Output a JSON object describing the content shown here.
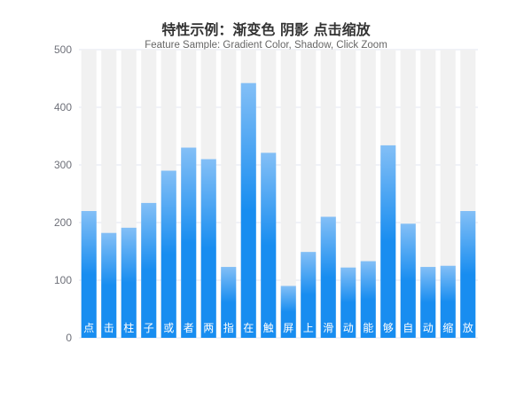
{
  "chart_data": {
    "type": "bar",
    "title": "特性示例：渐变色 阴影 点击缩放",
    "subtitle": "Feature Sample: Gradient Color, Shadow, Click Zoom",
    "categories": [
      "点",
      "击",
      "柱",
      "子",
      "或",
      "者",
      "两",
      "指",
      "在",
      "触",
      "屏",
      "上",
      "滑",
      "动",
      "能",
      "够",
      "自",
      "动",
      "缩",
      "放"
    ],
    "values": [
      220,
      182,
      191,
      234,
      290,
      330,
      310,
      123,
      442,
      321,
      90,
      149,
      210,
      122,
      133,
      334,
      198,
      123,
      125,
      220
    ],
    "ylim": [
      0,
      500
    ],
    "yticks": [
      "0",
      "100",
      "200",
      "300",
      "400",
      "500"
    ],
    "xlabel": "",
    "ylabel": "",
    "grid": true,
    "legend": "none",
    "colors": {
      "bar_top": "#83bff6",
      "bar_mid": "#188df0",
      "bar_bottom": "#188df0",
      "shadow": "#f1f1f1",
      "grid": "#e0e6f1",
      "axis_label": "#6e7079",
      "inner_label": "#ffffff"
    }
  }
}
